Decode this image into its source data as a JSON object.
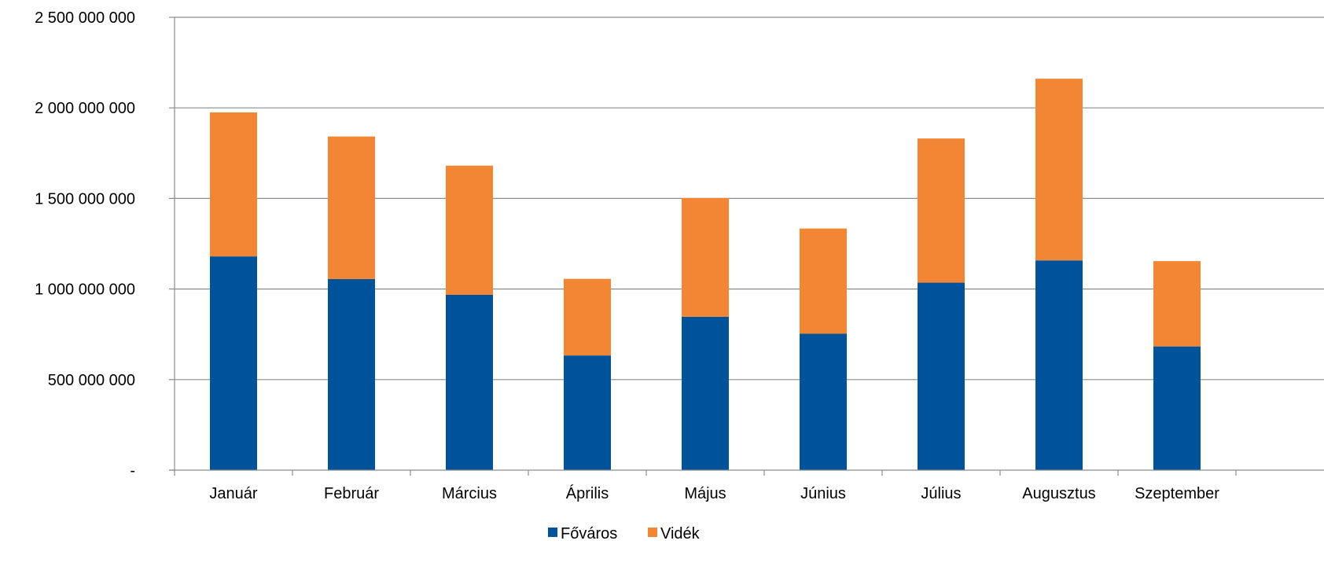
{
  "chart_data": {
    "type": "bar",
    "stacked": true,
    "categories": [
      "Január",
      "Február",
      "Március",
      "Április",
      "Május",
      "Június",
      "Július",
      "Augusztus",
      "Szeptember"
    ],
    "series": [
      {
        "name": "Főváros",
        "color": "#00529B",
        "values": [
          1180000000,
          1055000000,
          968000000,
          633000000,
          847000000,
          753000000,
          1035000000,
          1158000000,
          683000000
        ]
      },
      {
        "name": "Vidék",
        "color": "#F28634",
        "values": [
          795000000,
          787000000,
          713000000,
          423000000,
          655000000,
          581000000,
          796000000,
          1003000000,
          471000000
        ]
      }
    ],
    "ylim": [
      0,
      2500000000
    ],
    "y_ticks": [
      {
        "value": 0,
        "label": "-"
      },
      {
        "value": 500000000,
        "label": "500 000 000"
      },
      {
        "value": 1000000000,
        "label": "1 000 000 000"
      },
      {
        "value": 1500000000,
        "label": "1 500 000 000"
      },
      {
        "value": 2000000000,
        "label": "2 000 000 000"
      },
      {
        "value": 2500000000,
        "label": "2 500 000 000"
      }
    ],
    "grid": true,
    "legend_position": "bottom",
    "title": "",
    "xlabel": "",
    "ylabel": ""
  }
}
